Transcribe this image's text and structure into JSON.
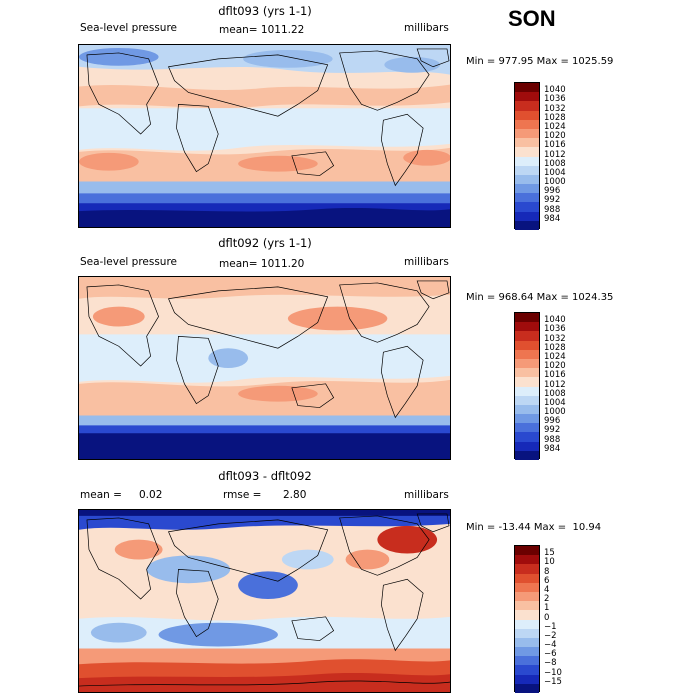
{
  "season": "SON",
  "palettes": {
    "slp": [
      "#6b0000",
      "#a00c0c",
      "#c82d1e",
      "#e0502f",
      "#ee7550",
      "#f59a78",
      "#f9c0a2",
      "#fbe1cf",
      "#ddeefb",
      "#bdd7f4",
      "#98bcec",
      "#7099e4",
      "#4a70db",
      "#2a49cf",
      "#1629b8",
      "#08137f"
    ],
    "diff": [
      "#6b0000",
      "#a00c0c",
      "#c82d1e",
      "#e0502f",
      "#ee7550",
      "#f59a78",
      "#f9c0a2",
      "#fbe1cf",
      "#ddeefb",
      "#bdd7f4",
      "#98bcec",
      "#7099e4",
      "#4a70db",
      "#2a49cf",
      "#1629b8",
      "#08137f"
    ]
  },
  "panels": [
    {
      "title": "dflt093 (yrs 1-1)",
      "left_label": "Sea-level pressure",
      "mid_label": "mean= 1011.22",
      "right_label": "millibars",
      "minmax": "Min = 977.95 Max = 1025.59",
      "colorbar_ticks": [
        "1040",
        "1036",
        "1032",
        "1028",
        "1024",
        "1020",
        "1016",
        "1012",
        "1008",
        "1004",
        "1000",
        "996",
        "992",
        "988",
        "984"
      ]
    },
    {
      "title": "dflt092 (yrs 1-1)",
      "left_label": "Sea-level pressure",
      "mid_label": "mean= 1011.20",
      "right_label": "millibars",
      "minmax": "Min = 968.64 Max = 1024.35",
      "colorbar_ticks": [
        "1040",
        "1036",
        "1032",
        "1028",
        "1024",
        "1020",
        "1016",
        "1012",
        "1008",
        "1004",
        "1000",
        "996",
        "992",
        "988",
        "984"
      ]
    },
    {
      "title": "dflt093 - dflt092",
      "left_label": "mean =",
      "left_value": "0.02",
      "mid_label": "rmse =",
      "mid_value": "2.80",
      "right_label": "millibars",
      "minmax": "Min = -13.44 Max =  10.94",
      "colorbar_ticks": [
        "15",
        "10",
        "8",
        "6",
        "4",
        "2",
        "1",
        "0",
        "−1",
        "−2",
        "−4",
        "−6",
        "−8",
        "−10",
        "−15"
      ]
    }
  ]
}
